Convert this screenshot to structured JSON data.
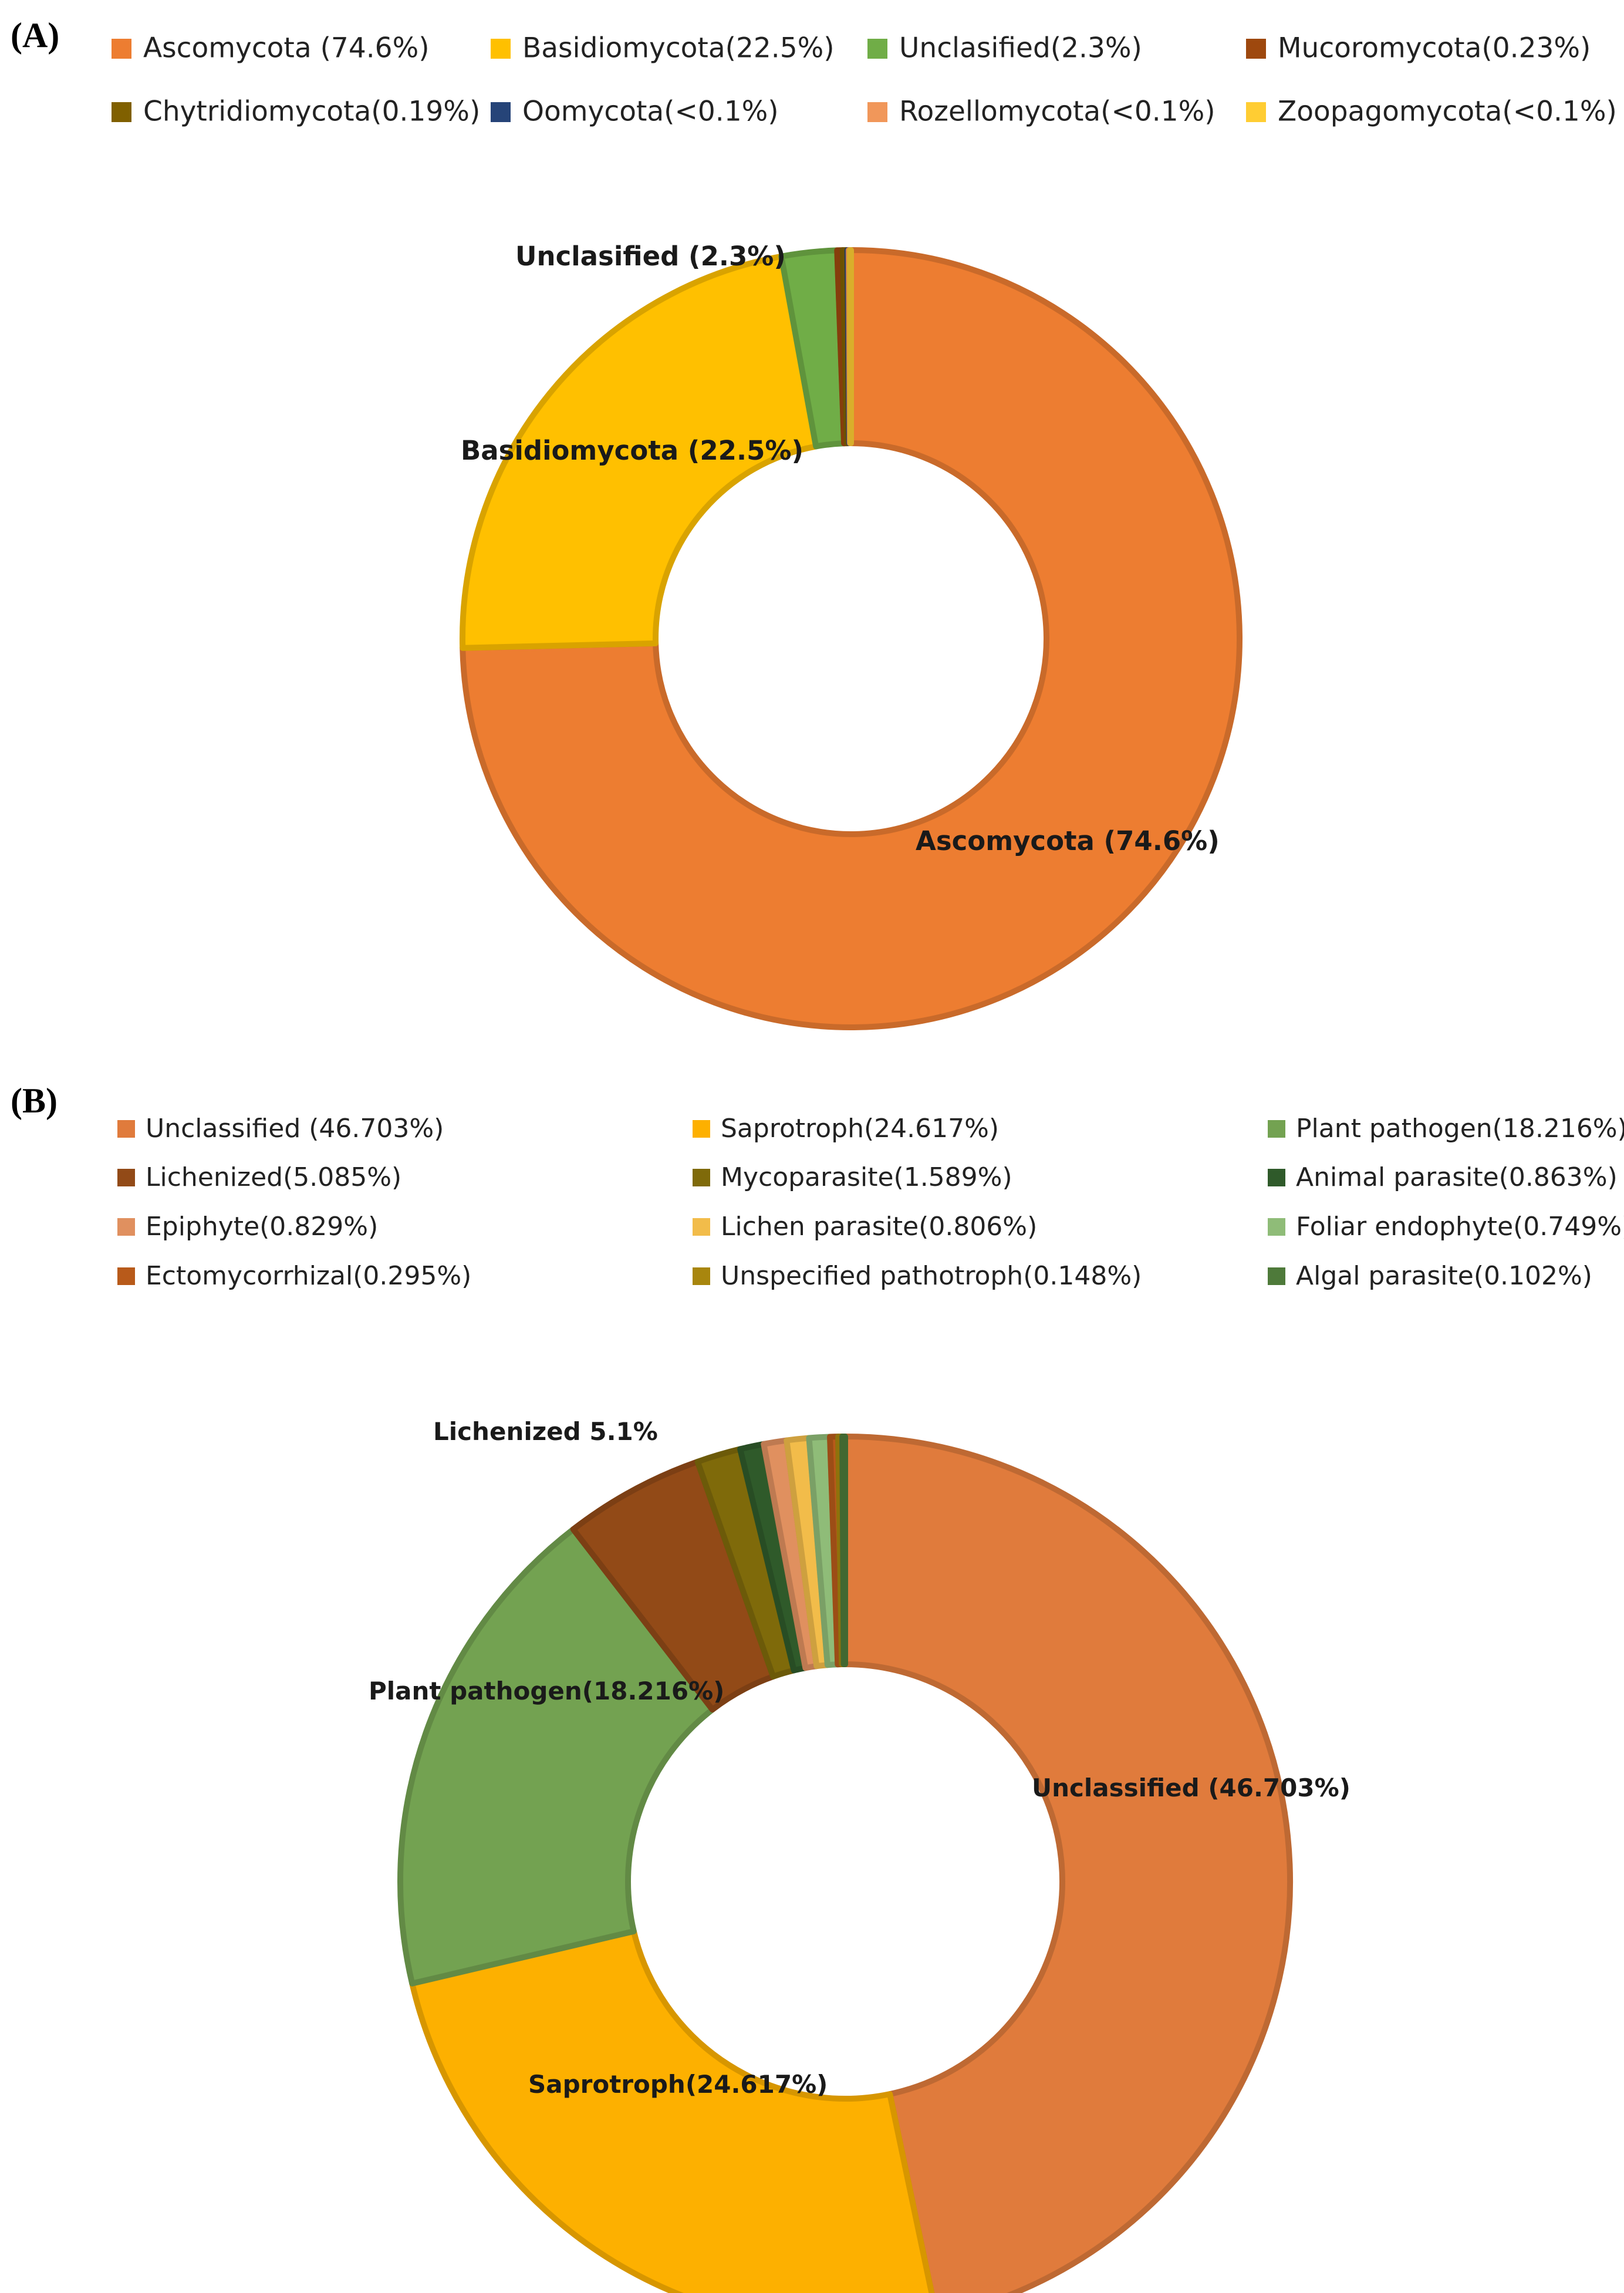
{
  "chart_data": [
    {
      "type": "pie",
      "panel": "(A)",
      "style": "donut",
      "series": [
        {
          "name": "Ascomycota",
          "legend": "Ascomycota (74.6%)",
          "value": 74.6,
          "color": "#ED7D31"
        },
        {
          "name": "Basidiomycota",
          "legend": "Basidiomycota(22.5%)",
          "value": 22.5,
          "color": "#FFC000"
        },
        {
          "name": "Unclasified",
          "legend": "Unclasified(2.3%)",
          "value": 2.3,
          "color": "#70AD47"
        },
        {
          "name": "Mucoromycota",
          "legend": "Mucoromycota(0.23%)",
          "value": 0.23,
          "color": "#9E480E"
        },
        {
          "name": "Chytridiomycota",
          "legend": "Chytridiomycota(0.19%)",
          "value": 0.19,
          "color": "#806000"
        },
        {
          "name": "Oomycota",
          "legend": "Oomycota(<0.1%)",
          "value": 0.05,
          "color": "#264478"
        },
        {
          "name": "Rozellomycota",
          "legend": "Rozellomycota(<0.1%)",
          "value": 0.05,
          "color": "#F1975A"
        },
        {
          "name": "Zoopagomycota",
          "legend": "Zoopagomycota(<0.1%)",
          "value": 0.05,
          "color": "#FFCD33"
        }
      ],
      "data_labels": [
        {
          "series": "Ascomycota",
          "text": "Ascomycota (74.6%)"
        },
        {
          "series": "Basidiomycota",
          "text": "Basidiomycota (22.5%)"
        },
        {
          "series": "Unclasified",
          "text": "Unclasified (2.3%)"
        }
      ]
    },
    {
      "type": "pie",
      "panel": "(B)",
      "style": "donut",
      "series": [
        {
          "name": "Unclassified",
          "legend": "Unclassified (46.703%)",
          "value": 46.703,
          "color": "#E07B3C"
        },
        {
          "name": "Saprotroph",
          "legend": "Saprotroph(24.617%)",
          "value": 24.617,
          "color": "#FDB000"
        },
        {
          "name": "Plant pathogen",
          "legend": "Plant pathogen(18.216%)",
          "value": 18.216,
          "color": "#73A251"
        },
        {
          "name": "Lichenized",
          "legend": "Lichenized(5.085%)",
          "value": 5.085,
          "color": "#924A17"
        },
        {
          "name": "Mycoparasite",
          "legend": "Mycoparasite(1.589%)",
          "value": 1.589,
          "color": "#7F6A0A"
        },
        {
          "name": "Animal parasite",
          "legend": "Animal parasite(0.863%)",
          "value": 0.863,
          "color": "#2F5A2A"
        },
        {
          "name": "Epiphyte",
          "legend": "Epiphyte(0.829%)",
          "value": 0.829,
          "color": "#E0905F"
        },
        {
          "name": "Lichen parasite",
          "legend": "Lichen parasite(0.806%)",
          "value": 0.806,
          "color": "#F2BC4A"
        },
        {
          "name": "Foliar endophyte",
          "legend": "Foliar endophyte(0.749%)",
          "value": 0.749,
          "color": "#8FBC78"
        },
        {
          "name": "Ectomycorrhizal",
          "legend": "Ectomycorrhizal(0.295%)",
          "value": 0.295,
          "color": "#B85A1A"
        },
        {
          "name": "Unspecified pathotroph",
          "legend": "Unspecified pathotroph(0.148%)",
          "value": 0.148,
          "color": "#A8860E"
        },
        {
          "name": "Algal parasite",
          "legend": "Algal parasite(0.102%)",
          "value": 0.102,
          "color": "#4E7A3A"
        }
      ],
      "data_labels": [
        {
          "series": "Unclassified",
          "text": "Unclassified (46.703%)"
        },
        {
          "series": "Saprotroph",
          "text": "Saprotroph(24.617%)"
        },
        {
          "series": "Plant pathogen",
          "text": "Plant pathogen(18.216%)"
        },
        {
          "series": "Lichenized",
          "text": "Lichenized 5.1%"
        }
      ]
    }
  ]
}
